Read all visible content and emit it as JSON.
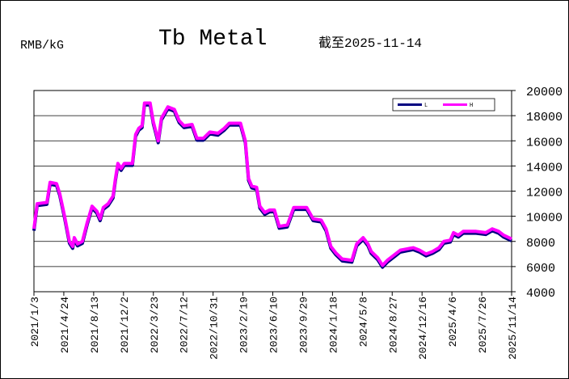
{
  "chart_data": {
    "type": "line",
    "title": "Tb Metal",
    "unit_label": "RMB/kG",
    "date_note": "截至2025-11-14",
    "x": [
      "2021/1/3",
      "2021/1/15",
      "2021/2/20",
      "2021/3/4",
      "2021/3/28",
      "2021/4/9",
      "2021/4/27",
      "2021/5/15",
      "2021/5/27",
      "2021/6/2",
      "2021/6/14",
      "2021/7/2",
      "2021/7/20",
      "2021/8/7",
      "2021/8/25",
      "2021/9/6",
      "2021/9/18",
      "2021/10/6",
      "2021/10/24",
      "2021/11/2",
      "2021/11/11",
      "2021/11/23",
      "2021/12/5",
      "2022/1/4",
      "2022/1/16",
      "2022/1/28",
      "2022/2/9",
      "2022/2/18",
      "2022/3/11",
      "2022/3/23",
      "2022/4/10",
      "2022/4/22",
      "2022/5/16",
      "2022/6/9",
      "2022/6/27",
      "2022/7/15",
      "2022/8/14",
      "2022/9/1",
      "2022/9/25",
      "2022/10/19",
      "2022/11/18",
      "2022/12/12",
      "2022/12/30",
      "2023/2/10",
      "2023/2/28",
      "2023/3/12",
      "2023/3/24",
      "2023/4/11",
      "2023/4/23",
      "2023/5/11",
      "2023/5/29",
      "2023/6/16",
      "2023/7/4",
      "2023/8/3",
      "2023/8/27",
      "2023/10/14",
      "2023/11/7",
      "2023/12/7",
      "2023/12/25",
      "2024/1/12",
      "2024/1/30",
      "2024/2/23",
      "2024/3/30",
      "2024/4/17",
      "2024/5/11",
      "2024/5/29",
      "2024/6/10",
      "2024/7/4",
      "2024/7/22",
      "2024/8/9",
      "2024/9/8",
      "2024/9/26",
      "2024/10/20",
      "2024/11/13",
      "2024/12/7",
      "2024/12/31",
      "2025/1/24",
      "2025/2/17",
      "2025/3/7",
      "2025/3/31",
      "2025/4/12",
      "2025/4/30",
      "2025/5/18",
      "2025/7/5",
      "2025/8/10",
      "2025/9/3",
      "2025/9/27",
      "2025/10/15",
      "2025/11/14"
    ],
    "series": [
      {
        "name": "L",
        "color": "#000080",
        "values": [
          8850,
          10850,
          10950,
          12550,
          12450,
          11650,
          9850,
          7850,
          7450,
          8150,
          7650,
          7850,
          9350,
          10650,
          10250,
          9650,
          10550,
          10850,
          11450,
          12850,
          14050,
          13650,
          14050,
          14050,
          16350,
          16850,
          17050,
          18850,
          18850,
          17350,
          15850,
          17650,
          18550,
          18350,
          17450,
          17050,
          17150,
          16050,
          16050,
          16550,
          16450,
          16850,
          17250,
          17250,
          15850,
          12850,
          12250,
          12150,
          10650,
          10150,
          10350,
          10350,
          9050,
          9150,
          10550,
          10550,
          9650,
          9550,
          8850,
          7450,
          6950,
          6450,
          6350,
          7650,
          8150,
          7650,
          7050,
          6550,
          5950,
          6350,
          6850,
          7150,
          7250,
          7350,
          7150,
          6850,
          7050,
          7350,
          7850,
          7950,
          8550,
          8350,
          8650,
          8650,
          8550,
          8850,
          8650,
          8350,
          8050
        ]
      },
      {
        "name": "H",
        "color": "#ff00ff",
        "values": [
          9000,
          11000,
          11100,
          12700,
          12600,
          11800,
          10000,
          8000,
          7600,
          8300,
          7800,
          8000,
          9500,
          10800,
          10400,
          9800,
          10700,
          11000,
          11600,
          13000,
          14200,
          13800,
          14200,
          14200,
          16500,
          17000,
          17200,
          19000,
          19000,
          17500,
          16000,
          17800,
          18700,
          18500,
          17600,
          17200,
          17300,
          16200,
          16200,
          16700,
          16600,
          17000,
          17400,
          17400,
          16000,
          13000,
          12400,
          12300,
          10800,
          10300,
          10500,
          10500,
          9200,
          9300,
          10700,
          10700,
          9800,
          9700,
          9000,
          7600,
          7100,
          6600,
          6500,
          7800,
          8300,
          7800,
          7200,
          6700,
          6100,
          6500,
          7000,
          7300,
          7400,
          7500,
          7300,
          7000,
          7200,
          7500,
          8000,
          8100,
          8700,
          8500,
          8800,
          8800,
          8700,
          9000,
          8800,
          8500,
          8200
        ]
      }
    ],
    "xlim": [
      "2021/1/3",
      "2025/11/14"
    ],
    "xticks": [
      "2021/1/3",
      "2021/4/24",
      "2021/8/13",
      "2021/12/2",
      "2022/3/23",
      "2022/7/12",
      "2022/10/31",
      "2023/2/19",
      "2023/6/10",
      "2023/9/29",
      "2024/1/18",
      "2024/5/8",
      "2024/8/27",
      "2024/12/16",
      "2025/4/6",
      "2025/7/26",
      "2025/11/14"
    ],
    "ylim": [
      4000,
      20000
    ],
    "yticks": [
      4000,
      6000,
      8000,
      10000,
      12000,
      14000,
      16000,
      18000,
      20000
    ],
    "grid": true,
    "legend": "upper-right"
  }
}
